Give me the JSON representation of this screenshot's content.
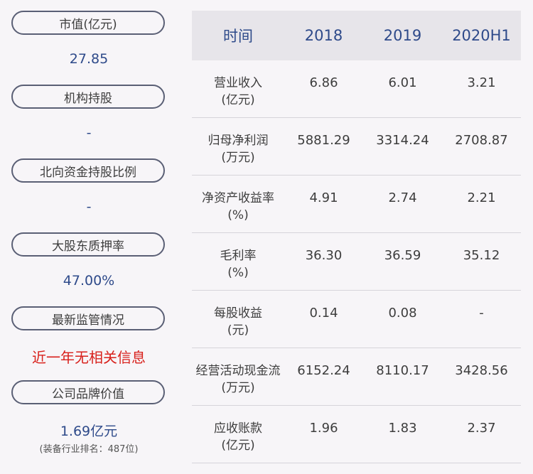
{
  "left_panel": {
    "items": [
      {
        "label": "市值(亿元)",
        "value": "27.85"
      },
      {
        "label": "机构持股",
        "value": "-"
      },
      {
        "label": "北向资金持股比例",
        "value": "-"
      },
      {
        "label": "大股东质押率",
        "value": "47.00%"
      },
      {
        "label": "最新监管情况",
        "value": "近一年无相关信息"
      },
      {
        "label": "公司品牌价值",
        "value": "1.69亿元",
        "sub": "(装备行业排名：487位)"
      }
    ]
  },
  "table": {
    "headers": [
      "时间",
      "2018",
      "2019",
      "2020H1"
    ],
    "rows": [
      {
        "label1": "营业收入",
        "label2": "(亿元)",
        "values": [
          "6.86",
          "6.01",
          "3.21"
        ]
      },
      {
        "label1": "归母净利润",
        "label2": "(万元)",
        "values": [
          "5881.29",
          "3314.24",
          "2708.87"
        ]
      },
      {
        "label1": "净资产收益率",
        "label2": "(%)",
        "values": [
          "4.91",
          "2.74",
          "2.21"
        ]
      },
      {
        "label1": "毛利率",
        "label2": "(%)",
        "values": [
          "36.30",
          "36.59",
          "35.12"
        ]
      },
      {
        "label1": "每股收益",
        "label2": "(元)",
        "values": [
          "0.14",
          "0.08",
          "-"
        ]
      },
      {
        "label1": "经营活动现金流",
        "label2": "(万元)",
        "values": [
          "6152.24",
          "8110.17",
          "3428.56"
        ]
      },
      {
        "label1": "应收账款",
        "label2": "(亿元)",
        "values": [
          "1.96",
          "1.83",
          "2.37"
        ]
      }
    ]
  },
  "colors": {
    "accent": "#2e4a8a",
    "alert": "#d8201b",
    "pill_border": "#5a5f75",
    "header_bg": "#e7e5ea"
  }
}
